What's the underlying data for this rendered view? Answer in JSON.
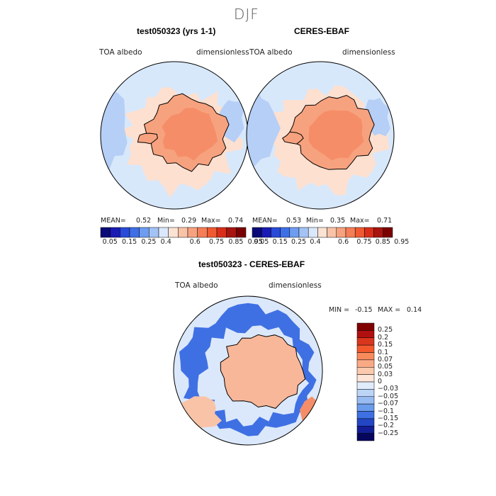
{
  "page_title": "DJF",
  "chart_data": [
    {
      "type": "heatmap",
      "projection": "south-polar-stereographic",
      "title": "test050323 (yrs 1-1)",
      "variable": "TOA albedo",
      "units": "dimensionless",
      "stats": {
        "mean_label": "MEAN=",
        "mean": "0.52",
        "min_label": "Min=",
        "min": "0.29",
        "max_label": "Max=",
        "max": "0.74"
      },
      "colorbar_ticks": [
        "0.05",
        "0.15",
        "0.25",
        "0.4",
        "0.6",
        "0.75",
        "0.85",
        "0.95"
      ]
    },
    {
      "type": "heatmap",
      "projection": "south-polar-stereographic",
      "title": "CERES-EBAF",
      "variable": "TOA albedo",
      "units": "dimensionless",
      "stats": {
        "mean_label": "MEAN=",
        "mean": "0.53",
        "min_label": "Min=",
        "min": "0.35",
        "max_label": "Max=",
        "max": "0.71"
      },
      "colorbar_ticks": [
        "0.05",
        "0.15",
        "0.25",
        "0.4",
        "0.6",
        "0.75",
        "0.85",
        "0.95"
      ]
    },
    {
      "type": "heatmap",
      "projection": "south-polar-stereographic",
      "title": "test050323 - CERES-EBAF",
      "variable": "TOA albedo",
      "units": "dimensionless",
      "stats": {
        "min_label": "MIN =",
        "min": "-0.15",
        "max_label": "MAX =",
        "max": "0.14"
      },
      "colorbar_ticks": [
        "0.25",
        "0.2",
        "0.15",
        "0.1",
        "0.07",
        "0.05",
        "0.03",
        "0",
        "−0.03",
        "−0.05",
        "−0.07",
        "−0.1",
        "−0.15",
        "−0.2",
        "−0.25"
      ]
    }
  ],
  "colors": {
    "seq_palette": [
      "#0a0a78",
      "#1a1ab4",
      "#2a4ad8",
      "#3f6fe6",
      "#6d9cf0",
      "#a3c3f5",
      "#dbe8fb",
      "#fbe3d4",
      "#f9c3a8",
      "#f7a27f",
      "#f47e57",
      "#ef5a33",
      "#d92e1a",
      "#a8140e",
      "#7a0000"
    ],
    "diff_palette": [
      "#800000",
      "#b01010",
      "#d9361e",
      "#f25a2d",
      "#f88a5c",
      "#f9aa84",
      "#fbc9ad",
      "#fde5d8",
      "#e0ecfb",
      "#bcd5f7",
      "#98bcf2",
      "#6b9cec",
      "#3f70e3",
      "#2346c4",
      "#131e96",
      "#06065e"
    ],
    "ocean_seq": "#d8e8fb",
    "ice_seq": "#fde0d0",
    "land_seq": "#f7a27f",
    "land_inner_seq": "#f58e68",
    "diff_bg": "#dbe8fb",
    "diff_negative": "#3f70e3",
    "diff_positive": "#f9b79a"
  }
}
